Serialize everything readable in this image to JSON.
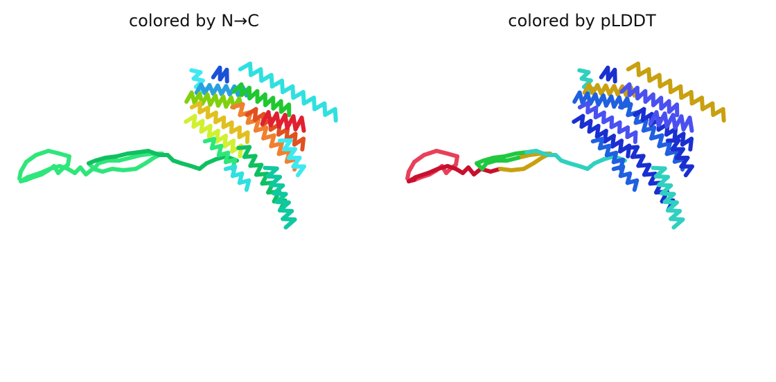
{
  "panels": [
    {
      "title": "colored by N→C",
      "coloring": "sequence-position",
      "palette": [
        "#2ee67a",
        "#10c060",
        "#10c8a0",
        "#30e0e0",
        "#40e8f0",
        "#2a9fe0",
        "#1a4fd8",
        "#20c830",
        "#80d010",
        "#d0f030",
        "#e0c020",
        "#f08030",
        "#e05020",
        "#e02030"
      ]
    },
    {
      "title": "colored by pLDDT",
      "coloring": "confidence",
      "palette": [
        "#c8102e",
        "#e8405a",
        "#c8a010",
        "#20c840",
        "#30d0c0",
        "#2060e0",
        "#1a2fd0",
        "#4a50f0",
        "#d06020"
      ]
    }
  ]
}
